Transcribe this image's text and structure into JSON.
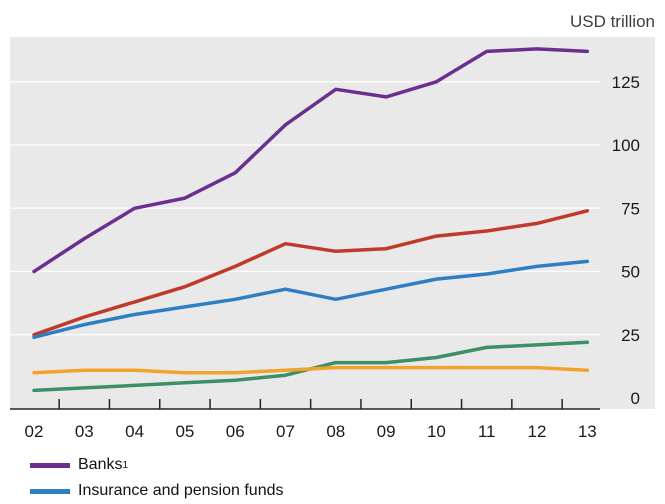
{
  "chart_data": {
    "type": "line",
    "unit_label": "USD trillion",
    "categories": [
      "02",
      "03",
      "04",
      "05",
      "06",
      "07",
      "08",
      "09",
      "10",
      "11",
      "12",
      "13"
    ],
    "ylim": [
      0,
      140
    ],
    "yticks": [
      "0",
      "25",
      "50",
      "75",
      "100",
      "125"
    ],
    "grid": "horizontal",
    "legend_position": "bottom-left",
    "series": [
      {
        "name": "Banks",
        "footnote": "1",
        "color": "#6a2f8f",
        "values": [
          50,
          63,
          75,
          79,
          89,
          108,
          122,
          119,
          125,
          137,
          138,
          137
        ]
      },
      {
        "name": "",
        "color": "#c0392b",
        "values": [
          25,
          32,
          38,
          44,
          52,
          61,
          58,
          59,
          64,
          66,
          69,
          74
        ]
      },
      {
        "name": "Insurance and pension funds",
        "color": "#2e7fc1",
        "values": [
          24,
          29,
          33,
          36,
          39,
          43,
          39,
          43,
          47,
          49,
          52,
          54
        ]
      },
      {
        "name": "",
        "color": "#3d8f67",
        "values": [
          3,
          4,
          5,
          6,
          7,
          9,
          14,
          14,
          16,
          20,
          21,
          22
        ]
      },
      {
        "name": "",
        "color": "#f2a32c",
        "values": [
          10,
          11,
          11,
          10,
          10,
          11,
          12,
          12,
          12,
          12,
          12,
          11
        ]
      }
    ]
  }
}
